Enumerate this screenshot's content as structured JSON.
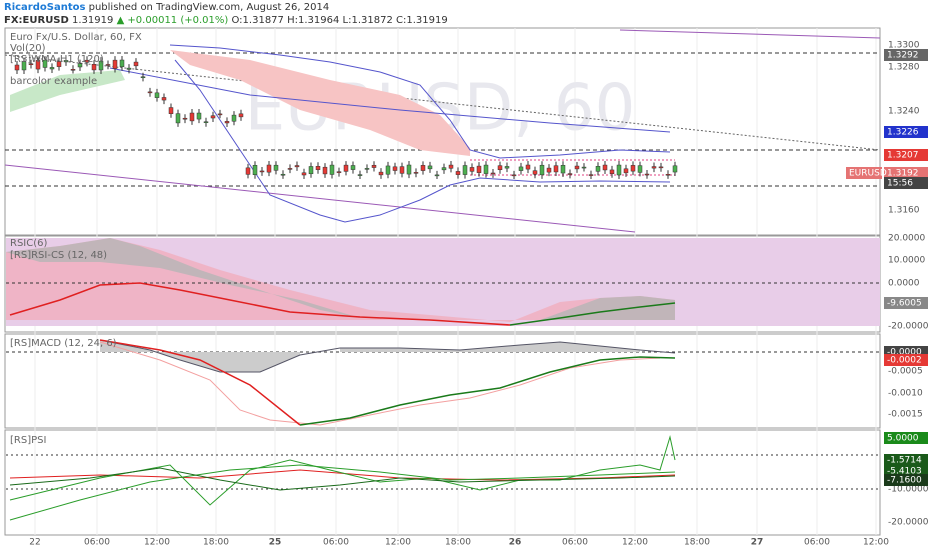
{
  "header": {
    "author": "RicardoSantos",
    "published": "published on TradingView.com, August 26, 2014",
    "symbol": "FX:EURUSD",
    "last": "1.31919",
    "change": "▲ +0.00011 (+0.01%)",
    "open": "O:1.31877",
    "high": "H:1.31964",
    "low": "L:1.31872",
    "close": "C:1.31919"
  },
  "watermark": "EURUSD, 60",
  "panels": [
    {
      "labels": [
        "Euro Fx/U.S. Dollar, 60, FX",
        "Vol(20)",
        "[RS]WMA-H1 (120)",
        "barcolor example"
      ],
      "axis_ticks": [
        "1.3300",
        "1.3280",
        "1.3240",
        "1.3160"
      ],
      "tags": [
        "1.3292",
        "1.3226",
        "1.3207",
        "1.3192",
        "EURUSD",
        "15:56"
      ]
    },
    {
      "labels": [
        "RSIC(6)",
        "[RS]RSI-CS (12, 48)"
      ],
      "axis_ticks": [
        "20.0000",
        "10.0000",
        "0.0000",
        "-20.0000"
      ],
      "tags": [
        "-9.6005"
      ]
    },
    {
      "labels": [
        "[RS]MACD (12, 24, 6)"
      ],
      "axis_ticks": [
        "-0.0005",
        "-0.0010",
        "-0.0015"
      ],
      "tags": [
        "-0.0000",
        "-0.0002"
      ]
    },
    {
      "labels": [
        "[RS]PSI"
      ],
      "axis_ticks": [
        "-10.0000",
        "-20.0000"
      ],
      "tags": [
        "5.0000",
        "-1.5714",
        "-5.4103",
        "-7.1600"
      ]
    }
  ],
  "time_axis": [
    "22",
    "06:00",
    "12:00",
    "18:00",
    "25",
    "06:00",
    "12:00",
    "18:00",
    "26",
    "06:00",
    "12:00",
    "18:00",
    "27",
    "06:00",
    "12:00"
  ]
}
